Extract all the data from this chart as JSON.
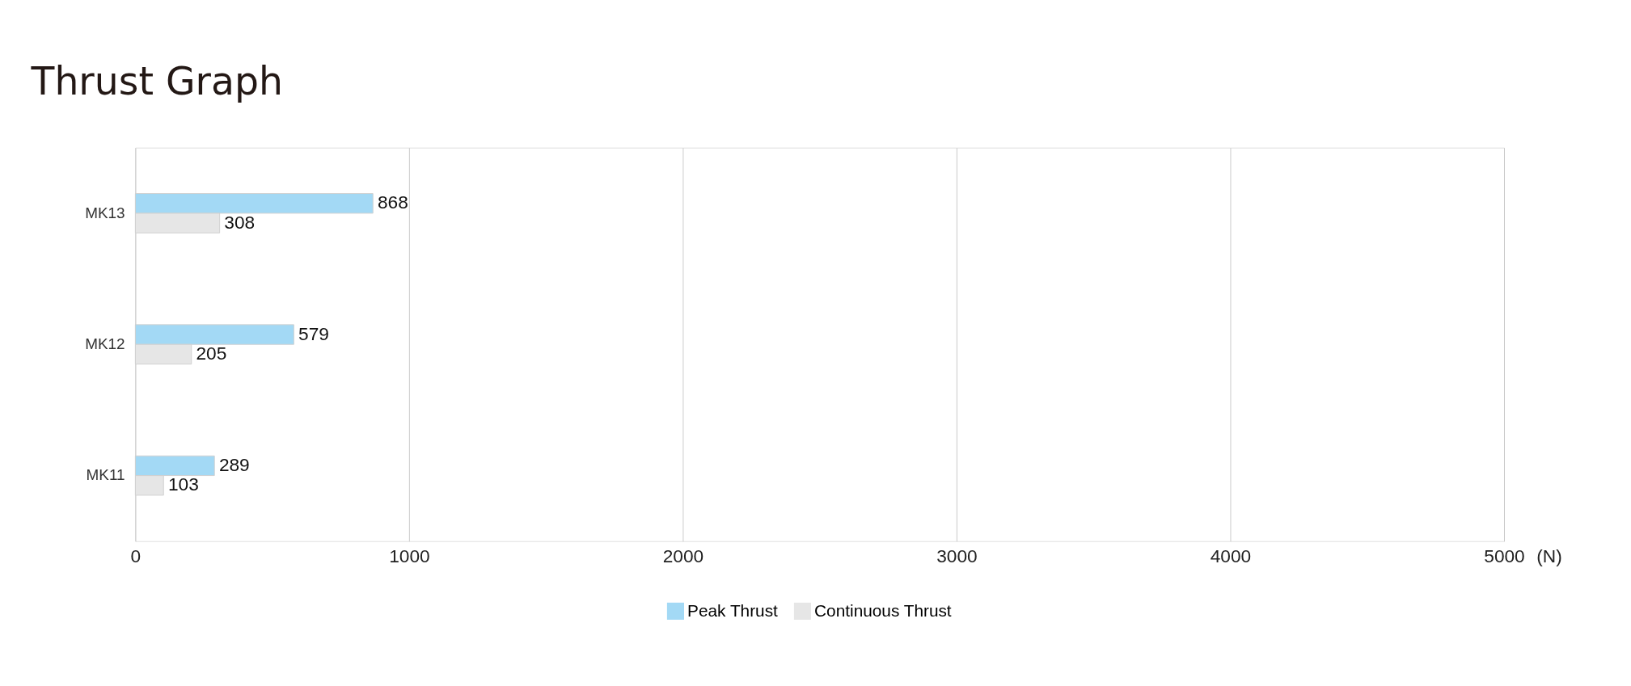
{
  "chart_data": {
    "type": "bar",
    "orientation": "horizontal",
    "title": "Thrust Graph",
    "xlabel": "(N)",
    "categories": [
      "MK13",
      "MK12",
      "MK11"
    ],
    "series": [
      {
        "name": "Peak Thrust",
        "color": "#a3d9f5",
        "values": [
          868,
          579,
          289
        ]
      },
      {
        "name": "Continuous Thrust",
        "color": "#e6e6e6",
        "values": [
          308,
          205,
          103
        ]
      }
    ],
    "xlim": [
      0,
      5000
    ],
    "xticks": [
      0,
      1000,
      2000,
      3000,
      4000,
      5000
    ],
    "grid": "x",
    "legend": "bottom",
    "data_labels": true
  }
}
